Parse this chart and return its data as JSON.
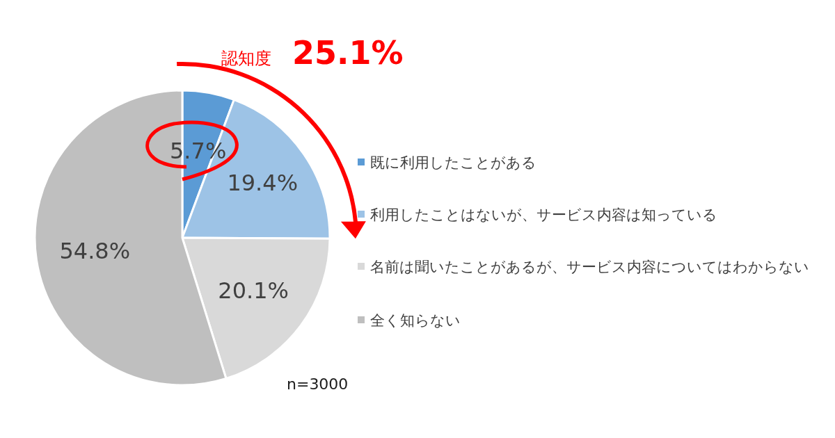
{
  "chart_data": {
    "type": "pie",
    "categories": [
      "既に利用したことがある",
      "利用したことはないが、サービス内容は知っている",
      "名前は聞いたことがあるが、サービス内容についてはわからない",
      "全く知らない"
    ],
    "values": [
      5.7,
      19.4,
      20.1,
      54.8
    ],
    "colors": [
      "#5b9bd5",
      "#9dc3e6",
      "#d9d9d9",
      "#bfbfbf"
    ],
    "value_labels": [
      "5.7%",
      "19.4%",
      "20.1%",
      "54.8%"
    ],
    "legend": "right",
    "annotations": [
      "認知度",
      "25.1%",
      "n=3000"
    ]
  }
}
